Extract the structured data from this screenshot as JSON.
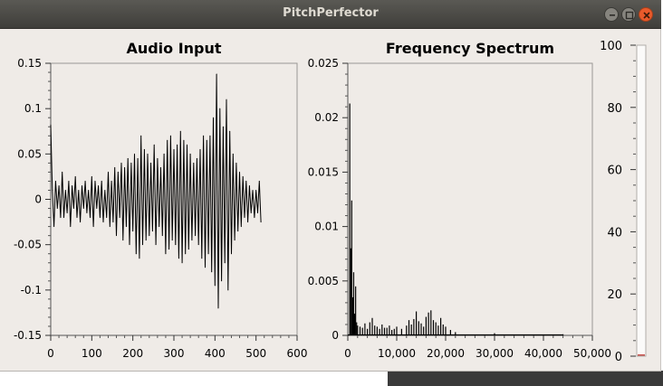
{
  "window": {
    "title": "PitchPerfector",
    "controls": {
      "minimize_icon": "minimize-icon",
      "maximize_icon": "maximize-icon",
      "close_icon": "close-icon",
      "close_color": "#e95a2b"
    }
  },
  "audio_panel": {
    "title": "Audio Input"
  },
  "spectrum_panel": {
    "title": "Frequency Spectrum"
  },
  "level_meter": {
    "value": 0,
    "range": [
      0,
      100
    ],
    "tick_labels": [
      "100",
      "80",
      "60",
      "40",
      "20",
      "0"
    ],
    "indicator_color": "#c8504a"
  },
  "chart_data": [
    {
      "type": "line",
      "title": "Audio Input",
      "xlabel": "",
      "ylabel": "",
      "xlim": [
        0,
        600
      ],
      "ylim": [
        -0.15,
        0.15
      ],
      "x_ticks": [
        0,
        100,
        200,
        300,
        400,
        500,
        600
      ],
      "x_tick_labels": [
        "0",
        "100",
        "200",
        "300",
        "400",
        "500",
        "600"
      ],
      "y_ticks": [
        -0.15,
        -0.1,
        -0.05,
        0,
        0.05,
        0.1,
        0.15
      ],
      "y_tick_labels": [
        "-0.15",
        "-0.1",
        "-0.05",
        "0",
        "0.05",
        "0.1",
        "0.15"
      ],
      "grid": false,
      "x": [
        0,
        4,
        8,
        12,
        16,
        20,
        24,
        28,
        32,
        36,
        40,
        44,
        48,
        52,
        56,
        60,
        64,
        68,
        72,
        76,
        80,
        84,
        88,
        92,
        96,
        100,
        104,
        108,
        112,
        116,
        120,
        124,
        128,
        132,
        136,
        140,
        144,
        148,
        152,
        156,
        160,
        164,
        168,
        172,
        176,
        180,
        184,
        188,
        192,
        196,
        200,
        204,
        208,
        212,
        216,
        220,
        224,
        228,
        232,
        236,
        240,
        244,
        248,
        252,
        256,
        260,
        264,
        268,
        272,
        276,
        280,
        284,
        288,
        292,
        296,
        300,
        304,
        308,
        312,
        316,
        320,
        324,
        328,
        332,
        336,
        340,
        344,
        348,
        352,
        356,
        360,
        364,
        368,
        372,
        376,
        380,
        384,
        388,
        392,
        396,
        400,
        404,
        408,
        412,
        416,
        420,
        424,
        428,
        432,
        436,
        440,
        444,
        448,
        452,
        456,
        460,
        464,
        468,
        472,
        476,
        480,
        484,
        488,
        492,
        496,
        500,
        504,
        508,
        512
      ],
      "y": [
        0.082,
        0.01,
        -0.03,
        0.02,
        -0.01,
        0.015,
        -0.02,
        0.03,
        -0.02,
        0.01,
        -0.015,
        0.02,
        -0.03,
        0.015,
        -0.01,
        0.025,
        -0.02,
        0.01,
        -0.025,
        0.015,
        -0.01,
        0.02,
        -0.015,
        0.01,
        -0.02,
        0.025,
        -0.03,
        0.02,
        -0.01,
        0.015,
        -0.02,
        0.02,
        -0.025,
        0.01,
        -0.02,
        0.03,
        -0.03,
        0.02,
        -0.025,
        0.035,
        -0.04,
        0.03,
        -0.02,
        0.04,
        -0.045,
        0.035,
        -0.03,
        0.045,
        -0.05,
        0.04,
        -0.035,
        0.05,
        -0.06,
        0.045,
        -0.065,
        0.07,
        -0.05,
        0.055,
        -0.045,
        0.05,
        -0.04,
        0.04,
        -0.035,
        0.06,
        -0.05,
        0.045,
        -0.03,
        0.035,
        -0.04,
        0.05,
        -0.06,
        0.065,
        -0.055,
        0.07,
        -0.045,
        0.055,
        -0.05,
        0.06,
        -0.065,
        0.075,
        -0.07,
        0.065,
        -0.06,
        0.06,
        -0.055,
        0.05,
        -0.045,
        0.04,
        -0.04,
        0.045,
        -0.05,
        0.055,
        -0.065,
        0.07,
        -0.075,
        0.065,
        -0.06,
        0.07,
        -0.08,
        0.09,
        -0.095,
        0.138,
        -0.12,
        0.1,
        -0.09,
        0.08,
        -0.07,
        0.11,
        -0.1,
        0.075,
        -0.06,
        0.05,
        -0.045,
        0.04,
        -0.035,
        0.03,
        -0.03,
        0.025,
        -0.02,
        0.02,
        -0.025,
        0.015,
        -0.015,
        0.01,
        -0.02,
        0.01,
        -0.015,
        0.02,
        -0.025
      ]
    },
    {
      "type": "bar",
      "title": "Frequency Spectrum",
      "xlabel": "",
      "ylabel": "",
      "xlim": [
        0,
        50000
      ],
      "ylim": [
        0,
        0.025
      ],
      "x_ticks": [
        0,
        10000,
        20000,
        30000,
        40000,
        50000
      ],
      "x_tick_labels": [
        "0",
        "10,000",
        "20,000",
        "30,000",
        "40,000",
        "50,000"
      ],
      "y_ticks": [
        0,
        0.005,
        0.01,
        0.015,
        0.02,
        0.025
      ],
      "y_tick_labels": [
        "0",
        "0.005",
        "0.01",
        "0.015",
        "0.02",
        "0.025"
      ],
      "grid": false,
      "x": [
        400,
        600,
        800,
        1000,
        1200,
        1400,
        1600,
        1800,
        2000,
        2500,
        3000,
        3500,
        4000,
        4500,
        5000,
        5500,
        6000,
        6500,
        7000,
        7500,
        8000,
        8500,
        9000,
        9500,
        10000,
        11000,
        12000,
        12500,
        13000,
        13500,
        14000,
        14500,
        15000,
        15500,
        16000,
        16500,
        17000,
        17500,
        18000,
        18500,
        19000,
        19500,
        20000,
        21000,
        22000,
        30000,
        44000
      ],
      "y": [
        0.0213,
        0.008,
        0.0124,
        0.0035,
        0.0058,
        0.002,
        0.0045,
        0.0012,
        0.0009,
        0.0008,
        0.0007,
        0.0011,
        0.0006,
        0.0012,
        0.0016,
        0.0009,
        0.0008,
        0.0006,
        0.001,
        0.0007,
        0.0007,
        0.0009,
        0.0005,
        0.0006,
        0.0008,
        0.0006,
        0.0009,
        0.0014,
        0.001,
        0.0015,
        0.0022,
        0.0013,
        0.0011,
        0.0008,
        0.0017,
        0.0021,
        0.0023,
        0.0014,
        0.0012,
        0.0009,
        0.0016,
        0.001,
        0.0008,
        0.0005,
        0.0003,
        0.0002,
        0.0001
      ]
    }
  ]
}
